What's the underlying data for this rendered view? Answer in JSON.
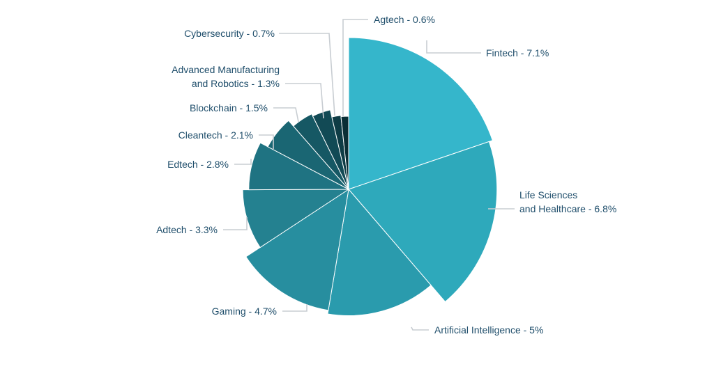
{
  "chart_data": {
    "type": "pie",
    "subtype": "rose",
    "title": "",
    "start_direction": "clockwise from top",
    "categories": [
      "Fintech",
      "Life Sciences and Healthcare",
      "Artificial Intelligence",
      "Gaming",
      "Adtech",
      "Edtech",
      "Cleantech",
      "Blockchain",
      "Advanced Manufacturing and Robotics",
      "Cybersecurity",
      "Agtech"
    ],
    "values": [
      7.1,
      6.8,
      5,
      4.7,
      3.3,
      2.8,
      2.1,
      1.5,
      1.3,
      0.7,
      0.6
    ],
    "unit": "%",
    "labels": [
      [
        "Fintech - 7.1%"
      ],
      [
        "Life Sciences",
        "and Healthcare - 6.8%"
      ],
      [
        "Artificial Intelligence - 5%"
      ],
      [
        "Gaming - 4.7%"
      ],
      [
        "Adtech - 3.3%"
      ],
      [
        "Edtech - 2.8%"
      ],
      [
        "Cleantech - 2.1%"
      ],
      [
        "Blockchain - 1.5%"
      ],
      [
        "Advanced Manufacturing",
        "and Robotics - 1.3%"
      ],
      [
        "Cybersecurity - 0.7%"
      ],
      [
        "Agtech - 0.6%"
      ]
    ],
    "colors": [
      "#35b6cb",
      "#2ea9bb",
      "#2a9bad",
      "#278e9f",
      "#248190",
      "#1f7382",
      "#1a6673",
      "#165864",
      "#124a55",
      "#0e3c45",
      "#0a2e35"
    ]
  }
}
